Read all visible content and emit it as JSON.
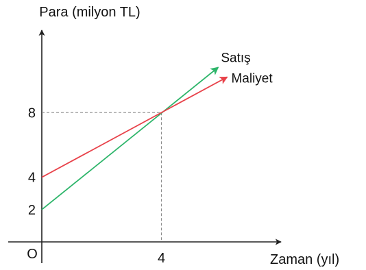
{
  "chart_data": {
    "type": "line",
    "ylabel": "Para (milyon TL)",
    "xlabel": "Zaman (yıl)",
    "origin_label": "O",
    "x_ticks": [
      4
    ],
    "y_ticks": [
      2,
      4,
      8
    ],
    "xlim": [
      0,
      8.0
    ],
    "ylim": [
      0,
      13.1
    ],
    "intersection": {
      "x": 4,
      "y": 8
    },
    "series": [
      {
        "name": "Satış",
        "color": "#2db56a",
        "x": [
          0,
          5.9
        ],
        "y": [
          2,
          10.8
        ]
      },
      {
        "name": "Maliyet",
        "color": "#e8424a",
        "x": [
          0,
          6.2
        ],
        "y": [
          4,
          10.2
        ]
      }
    ],
    "grid": false,
    "axis_color": "#222222",
    "guide_color": "#8a8a8a"
  }
}
